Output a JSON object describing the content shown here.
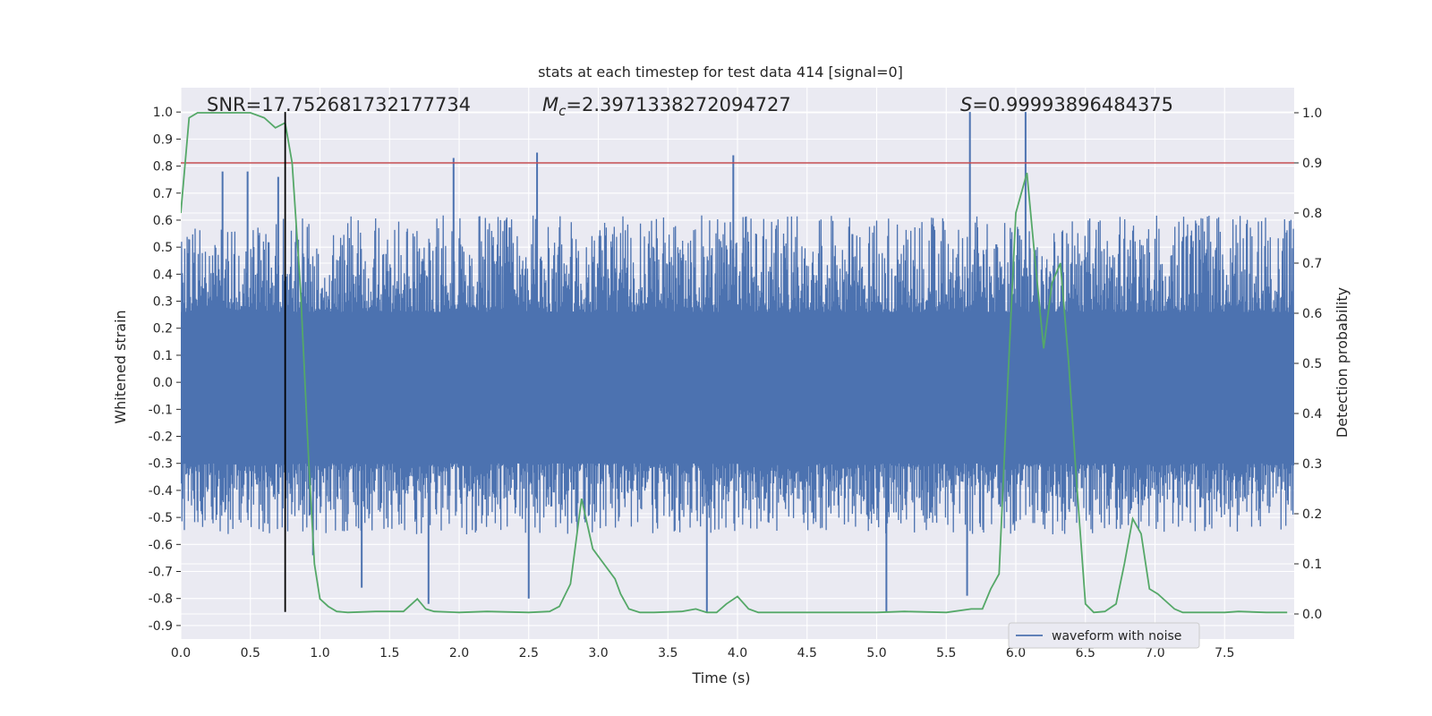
{
  "chart_data": {
    "type": "line",
    "title": "stats at each timestep for test data 414 [signal=0]",
    "xlabel": "Time (s)",
    "ylabel": "Whitened strain",
    "y2label": "Detection probability",
    "xlim": [
      0.0,
      8.0
    ],
    "ylim": [
      -0.95,
      1.09
    ],
    "y2lim": [
      -0.05,
      1.05
    ],
    "x_ticks": [
      "0.0",
      "0.5",
      "1.0",
      "1.5",
      "2.0",
      "2.5",
      "3.0",
      "3.5",
      "4.0",
      "4.5",
      "5.0",
      "5.5",
      "6.0",
      "6.5",
      "7.0",
      "7.5"
    ],
    "y_ticks": [
      "1.0",
      "0.9",
      "0.8",
      "0.7",
      "0.6",
      "0.5",
      "0.4",
      "0.3",
      "0.2",
      "0.1",
      "0.0",
      "-0.1",
      "-0.2",
      "-0.3",
      "-0.4",
      "-0.5",
      "-0.6",
      "-0.7",
      "-0.8",
      "-0.9"
    ],
    "y2_ticks": [
      "1.0",
      "0.9",
      "0.8",
      "0.7",
      "0.6",
      "0.5",
      "0.4",
      "0.3",
      "0.2",
      "0.1",
      "0.0"
    ],
    "grid": true,
    "legend": {
      "placement": "lower-right",
      "entries": [
        "waveform with noise"
      ]
    },
    "annotations": {
      "snr": "SNR=17.752681732177734",
      "mc_symbol": "M",
      "mc_sub": "c",
      "mc_value": "=2.3971338272094727",
      "s_symbol": "S",
      "s_value": "=0.99993896484375"
    },
    "threshold_line": {
      "axis": "y2",
      "value": 0.9,
      "color": "#c44e52"
    },
    "vertical_marker": {
      "x": 0.75,
      "ymin": -0.85,
      "ymax": 1.0,
      "color": "#000000"
    },
    "series": [
      {
        "name": "waveform with noise",
        "axis": "y",
        "color": "#4c72b0",
        "core_band": [
          -0.3,
          0.26
        ],
        "typical_extent": [
          -0.55,
          0.6
        ],
        "peaks": [
          {
            "x": 0.3,
            "y": 0.78
          },
          {
            "x": 0.48,
            "y": 0.78
          },
          {
            "x": 0.7,
            "y": 0.76
          },
          {
            "x": 1.96,
            "y": 0.83
          },
          {
            "x": 2.56,
            "y": 0.85
          },
          {
            "x": 3.97,
            "y": 0.84
          },
          {
            "x": 5.67,
            "y": 1.0
          },
          {
            "x": 6.07,
            "y": 1.0
          }
        ],
        "troughs": [
          {
            "x": 0.95,
            "y": -0.64
          },
          {
            "x": 1.3,
            "y": -0.76
          },
          {
            "x": 1.78,
            "y": -0.82
          },
          {
            "x": 2.5,
            "y": -0.8
          },
          {
            "x": 3.78,
            "y": -0.85
          },
          {
            "x": 5.07,
            "y": -0.85
          },
          {
            "x": 5.65,
            "y": -0.79
          }
        ]
      },
      {
        "name": "",
        "axis": "y2",
        "color": "#55a868",
        "x": [
          0.0,
          0.06,
          0.12,
          0.5,
          0.6,
          0.68,
          0.75,
          0.8,
          0.86,
          0.92,
          0.96,
          1.0,
          1.06,
          1.12,
          1.2,
          1.4,
          1.6,
          1.7,
          1.76,
          1.82,
          2.0,
          2.2,
          2.5,
          2.65,
          2.72,
          2.8,
          2.88,
          2.96,
          3.04,
          3.12,
          3.16,
          3.22,
          3.3,
          3.4,
          3.6,
          3.7,
          3.78,
          3.85,
          3.92,
          4.0,
          4.08,
          4.15,
          4.3,
          4.5,
          5.0,
          5.2,
          5.5,
          5.68,
          5.76,
          5.82,
          5.88,
          5.94,
          6.0,
          6.08,
          6.14,
          6.2,
          6.26,
          6.32,
          6.38,
          6.44,
          6.5,
          6.56,
          6.64,
          6.72,
          6.78,
          6.84,
          6.9,
          6.96,
          7.02,
          7.08,
          7.14,
          7.2,
          7.5,
          7.6,
          7.8,
          7.95
        ],
        "y": [
          0.8,
          0.99,
          1.0,
          1.0,
          0.99,
          0.97,
          0.98,
          0.9,
          0.65,
          0.3,
          0.1,
          0.03,
          0.015,
          0.005,
          0.003,
          0.005,
          0.005,
          0.03,
          0.01,
          0.005,
          0.003,
          0.005,
          0.003,
          0.005,
          0.015,
          0.06,
          0.23,
          0.13,
          0.1,
          0.07,
          0.04,
          0.01,
          0.003,
          0.003,
          0.005,
          0.01,
          0.003,
          0.003,
          0.02,
          0.035,
          0.01,
          0.003,
          0.003,
          0.003,
          0.003,
          0.005,
          0.003,
          0.01,
          0.01,
          0.05,
          0.08,
          0.45,
          0.8,
          0.88,
          0.7,
          0.53,
          0.66,
          0.7,
          0.5,
          0.25,
          0.02,
          0.003,
          0.005,
          0.02,
          0.1,
          0.19,
          0.16,
          0.05,
          0.04,
          0.025,
          0.01,
          0.003,
          0.003,
          0.005,
          0.003,
          0.003
        ]
      }
    ]
  }
}
